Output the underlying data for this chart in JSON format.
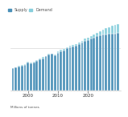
{
  "title": "",
  "legend": [
    "Supply",
    "Demand"
  ],
  "supply_color": "#4a90b8",
  "demand_color": "#87cedc",
  "bar_edge_color": "#ffffff",
  "background_color": "#ffffff",
  "years": [
    1995,
    1996,
    1997,
    1998,
    1999,
    2000,
    2001,
    2002,
    2003,
    2004,
    2005,
    2006,
    2007,
    2008,
    2009,
    2010,
    2011,
    2012,
    2013,
    2014,
    2015,
    2016,
    2017,
    2018,
    2019,
    2020,
    2021,
    2022,
    2023,
    2024,
    2025,
    2026,
    2027,
    2028,
    2029,
    2030
  ],
  "supply": [
    9.0,
    9.3,
    9.8,
    10.1,
    10.5,
    11.2,
    11.0,
    11.4,
    11.9,
    12.5,
    13.0,
    13.8,
    14.5,
    14.8,
    14.2,
    15.3,
    16.0,
    16.3,
    17.0,
    17.5,
    17.8,
    18.0,
    18.8,
    19.5,
    20.0,
    20.5,
    21.0,
    21.5,
    22.0,
    22.3,
    22.5,
    22.7,
    22.9,
    23.0,
    23.1,
    23.2
  ],
  "demand": [
    9.2,
    9.5,
    10.0,
    10.3,
    10.7,
    11.5,
    11.3,
    11.7,
    12.2,
    13.0,
    13.5,
    14.0,
    14.8,
    15.0,
    14.5,
    15.8,
    16.5,
    16.8,
    17.5,
    18.0,
    18.3,
    18.7,
    19.5,
    20.2,
    21.0,
    21.5,
    22.0,
    22.7,
    23.3,
    24.0,
    24.7,
    25.2,
    25.7,
    26.1,
    26.5,
    27.0
  ],
  "xlabel_ticks": [
    2000,
    2010,
    2020
  ],
  "hline_y": 17.0,
  "ylabel": "Millions of tonnes",
  "ylim": [
    0,
    28
  ],
  "fig_bg": "#ffffff",
  "text_color": "#333333",
  "grid_color": "#cccccc",
  "legend_color": "#555555"
}
